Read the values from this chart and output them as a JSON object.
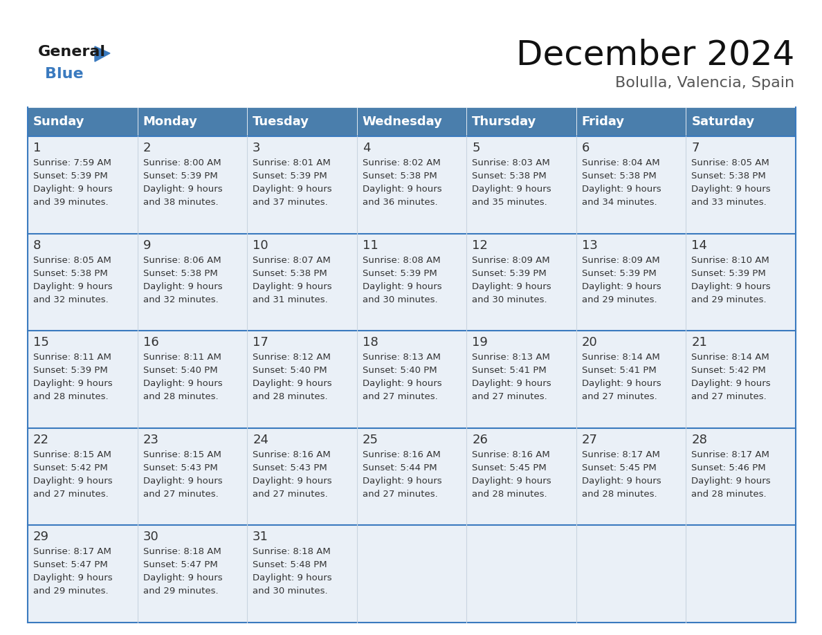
{
  "title": "December 2024",
  "subtitle": "Bolulla, Valencia, Spain",
  "header_color": "#4a7eac",
  "header_text_color": "#ffffff",
  "day_names": [
    "Sunday",
    "Monday",
    "Tuesday",
    "Wednesday",
    "Thursday",
    "Friday",
    "Saturday"
  ],
  "cell_bg_color": "#eaf0f7",
  "border_color": "#3a7abf",
  "text_color": "#333333",
  "days": [
    {
      "day": 1,
      "col": 0,
      "row": 0,
      "sunrise": "7:59 AM",
      "sunset": "5:39 PM",
      "daylight_h": "9 hours",
      "daylight_m": "and 39 minutes."
    },
    {
      "day": 2,
      "col": 1,
      "row": 0,
      "sunrise": "8:00 AM",
      "sunset": "5:39 PM",
      "daylight_h": "9 hours",
      "daylight_m": "and 38 minutes."
    },
    {
      "day": 3,
      "col": 2,
      "row": 0,
      "sunrise": "8:01 AM",
      "sunset": "5:39 PM",
      "daylight_h": "9 hours",
      "daylight_m": "and 37 minutes."
    },
    {
      "day": 4,
      "col": 3,
      "row": 0,
      "sunrise": "8:02 AM",
      "sunset": "5:38 PM",
      "daylight_h": "9 hours",
      "daylight_m": "and 36 minutes."
    },
    {
      "day": 5,
      "col": 4,
      "row": 0,
      "sunrise": "8:03 AM",
      "sunset": "5:38 PM",
      "daylight_h": "9 hours",
      "daylight_m": "and 35 minutes."
    },
    {
      "day": 6,
      "col": 5,
      "row": 0,
      "sunrise": "8:04 AM",
      "sunset": "5:38 PM",
      "daylight_h": "9 hours",
      "daylight_m": "and 34 minutes."
    },
    {
      "day": 7,
      "col": 6,
      "row": 0,
      "sunrise": "8:05 AM",
      "sunset": "5:38 PM",
      "daylight_h": "9 hours",
      "daylight_m": "and 33 minutes."
    },
    {
      "day": 8,
      "col": 0,
      "row": 1,
      "sunrise": "8:05 AM",
      "sunset": "5:38 PM",
      "daylight_h": "9 hours",
      "daylight_m": "and 32 minutes."
    },
    {
      "day": 9,
      "col": 1,
      "row": 1,
      "sunrise": "8:06 AM",
      "sunset": "5:38 PM",
      "daylight_h": "9 hours",
      "daylight_m": "and 32 minutes."
    },
    {
      "day": 10,
      "col": 2,
      "row": 1,
      "sunrise": "8:07 AM",
      "sunset": "5:38 PM",
      "daylight_h": "9 hours",
      "daylight_m": "and 31 minutes."
    },
    {
      "day": 11,
      "col": 3,
      "row": 1,
      "sunrise": "8:08 AM",
      "sunset": "5:39 PM",
      "daylight_h": "9 hours",
      "daylight_m": "and 30 minutes."
    },
    {
      "day": 12,
      "col": 4,
      "row": 1,
      "sunrise": "8:09 AM",
      "sunset": "5:39 PM",
      "daylight_h": "9 hours",
      "daylight_m": "and 30 minutes."
    },
    {
      "day": 13,
      "col": 5,
      "row": 1,
      "sunrise": "8:09 AM",
      "sunset": "5:39 PM",
      "daylight_h": "9 hours",
      "daylight_m": "and 29 minutes."
    },
    {
      "day": 14,
      "col": 6,
      "row": 1,
      "sunrise": "8:10 AM",
      "sunset": "5:39 PM",
      "daylight_h": "9 hours",
      "daylight_m": "and 29 minutes."
    },
    {
      "day": 15,
      "col": 0,
      "row": 2,
      "sunrise": "8:11 AM",
      "sunset": "5:39 PM",
      "daylight_h": "9 hours",
      "daylight_m": "and 28 minutes."
    },
    {
      "day": 16,
      "col": 1,
      "row": 2,
      "sunrise": "8:11 AM",
      "sunset": "5:40 PM",
      "daylight_h": "9 hours",
      "daylight_m": "and 28 minutes."
    },
    {
      "day": 17,
      "col": 2,
      "row": 2,
      "sunrise": "8:12 AM",
      "sunset": "5:40 PM",
      "daylight_h": "9 hours",
      "daylight_m": "and 28 minutes."
    },
    {
      "day": 18,
      "col": 3,
      "row": 2,
      "sunrise": "8:13 AM",
      "sunset": "5:40 PM",
      "daylight_h": "9 hours",
      "daylight_m": "and 27 minutes."
    },
    {
      "day": 19,
      "col": 4,
      "row": 2,
      "sunrise": "8:13 AM",
      "sunset": "5:41 PM",
      "daylight_h": "9 hours",
      "daylight_m": "and 27 minutes."
    },
    {
      "day": 20,
      "col": 5,
      "row": 2,
      "sunrise": "8:14 AM",
      "sunset": "5:41 PM",
      "daylight_h": "9 hours",
      "daylight_m": "and 27 minutes."
    },
    {
      "day": 21,
      "col": 6,
      "row": 2,
      "sunrise": "8:14 AM",
      "sunset": "5:42 PM",
      "daylight_h": "9 hours",
      "daylight_m": "and 27 minutes."
    },
    {
      "day": 22,
      "col": 0,
      "row": 3,
      "sunrise": "8:15 AM",
      "sunset": "5:42 PM",
      "daylight_h": "9 hours",
      "daylight_m": "and 27 minutes."
    },
    {
      "day": 23,
      "col": 1,
      "row": 3,
      "sunrise": "8:15 AM",
      "sunset": "5:43 PM",
      "daylight_h": "9 hours",
      "daylight_m": "and 27 minutes."
    },
    {
      "day": 24,
      "col": 2,
      "row": 3,
      "sunrise": "8:16 AM",
      "sunset": "5:43 PM",
      "daylight_h": "9 hours",
      "daylight_m": "and 27 minutes."
    },
    {
      "day": 25,
      "col": 3,
      "row": 3,
      "sunrise": "8:16 AM",
      "sunset": "5:44 PM",
      "daylight_h": "9 hours",
      "daylight_m": "and 27 minutes."
    },
    {
      "day": 26,
      "col": 4,
      "row": 3,
      "sunrise": "8:16 AM",
      "sunset": "5:45 PM",
      "daylight_h": "9 hours",
      "daylight_m": "and 28 minutes."
    },
    {
      "day": 27,
      "col": 5,
      "row": 3,
      "sunrise": "8:17 AM",
      "sunset": "5:45 PM",
      "daylight_h": "9 hours",
      "daylight_m": "and 28 minutes."
    },
    {
      "day": 28,
      "col": 6,
      "row": 3,
      "sunrise": "8:17 AM",
      "sunset": "5:46 PM",
      "daylight_h": "9 hours",
      "daylight_m": "and 28 minutes."
    },
    {
      "day": 29,
      "col": 0,
      "row": 4,
      "sunrise": "8:17 AM",
      "sunset": "5:47 PM",
      "daylight_h": "9 hours",
      "daylight_m": "and 29 minutes."
    },
    {
      "day": 30,
      "col": 1,
      "row": 4,
      "sunrise": "8:18 AM",
      "sunset": "5:47 PM",
      "daylight_h": "9 hours",
      "daylight_m": "and 29 minutes."
    },
    {
      "day": 31,
      "col": 2,
      "row": 4,
      "sunrise": "8:18 AM",
      "sunset": "5:48 PM",
      "daylight_h": "9 hours",
      "daylight_m": "and 30 minutes."
    }
  ],
  "logo_color_general": "#1a1a1a",
  "logo_color_blue": "#3a7abf",
  "logo_triangle_color": "#3a7abf",
  "title_fontsize": 36,
  "subtitle_fontsize": 16,
  "header_fontsize": 13,
  "day_num_fontsize": 13,
  "cell_text_fontsize": 9.5
}
